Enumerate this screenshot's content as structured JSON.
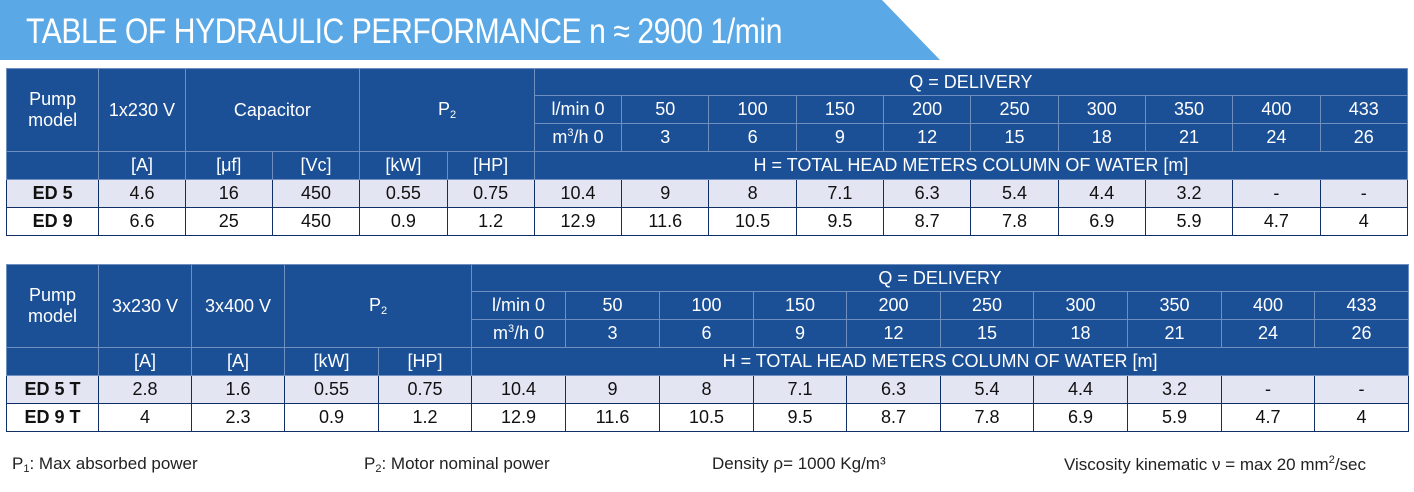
{
  "title": "TABLE OF HYDRAULIC PERFORMANCE n ≈ 2900 1/min",
  "table1": {
    "pump_model": "Pump model",
    "voltage": "1x230 V",
    "capacitor": "Capacitor",
    "p2": "P",
    "p2_sub": "2",
    "delivery": "Q = DELIVERY",
    "lmin": [
      "l/min 0",
      "50",
      "100",
      "150",
      "200",
      "250",
      "300",
      "350",
      "400",
      "433"
    ],
    "m3h_label": "m",
    "m3h_sup": "3",
    "m3h_rest": "/h 0",
    "m3h": [
      "3",
      "6",
      "9",
      "12",
      "15",
      "18",
      "21",
      "24",
      "26"
    ],
    "units": [
      "[A]",
      "[μf]",
      "[Vc]",
      "[kW]",
      "[HP]"
    ],
    "head": "H = TOTAL HEAD METERS COLUMN OF WATER [m]",
    "rows": [
      {
        "model": "ED 5",
        "cells": [
          "4.6",
          "16",
          "450",
          "0.55",
          "0.75",
          "10.4",
          "9",
          "8",
          "7.1",
          "6.3",
          "5.4",
          "4.4",
          "3.2",
          "-",
          "-"
        ]
      },
      {
        "model": "ED 9",
        "cells": [
          "6.6",
          "25",
          "450",
          "0.9",
          "1.2",
          "12.9",
          "11.6",
          "10.5",
          "9.5",
          "8.7",
          "7.8",
          "6.9",
          "5.9",
          "4.7",
          "4"
        ]
      }
    ]
  },
  "table2": {
    "pump_model": "Pump model",
    "voltage1": "3x230 V",
    "voltage2": "3x400 V",
    "p2": "P",
    "p2_sub": "2",
    "delivery": "Q = DELIVERY",
    "lmin": [
      "l/min 0",
      "50",
      "100",
      "150",
      "200",
      "250",
      "300",
      "350",
      "400",
      "433"
    ],
    "m3h_label": "m",
    "m3h_sup": "3",
    "m3h_rest": "/h 0",
    "m3h": [
      "3",
      "6",
      "9",
      "12",
      "15",
      "18",
      "21",
      "24",
      "26"
    ],
    "units": [
      "[A]",
      "[A]",
      "[kW]",
      "[HP]"
    ],
    "head": "H = TOTAL HEAD METERS COLUMN OF WATER [m]",
    "rows": [
      {
        "model": "ED 5 T",
        "cells": [
          "2.8",
          "1.6",
          "0.55",
          "0.75",
          "10.4",
          "9",
          "8",
          "7.1",
          "6.3",
          "5.4",
          "4.4",
          "3.2",
          "-",
          "-"
        ]
      },
      {
        "model": "ED 9 T",
        "cells": [
          "4",
          "2.3",
          "0.9",
          "1.2",
          "12.9",
          "11.6",
          "10.5",
          "9.5",
          "8.7",
          "7.8",
          "6.9",
          "5.9",
          "4.7",
          "4"
        ]
      }
    ]
  },
  "footer": {
    "p1_label": "P",
    "p1_sub": "1",
    "p1_text": ": Max absorbed power",
    "p2_label": "P",
    "p2_sub": "2",
    "p2_text": ": Motor nominal power",
    "density": "Density ρ= 1000 Kg/m³",
    "viscosity_prefix": "Viscosity kinematic ν = max 20 mm",
    "viscosity_sup": "2",
    "viscosity_suffix": "/sec"
  },
  "colors": {
    "header_blue": "#1b4f96",
    "banner_blue": "#5aa9e6",
    "row_band": "#e3e5f3"
  }
}
